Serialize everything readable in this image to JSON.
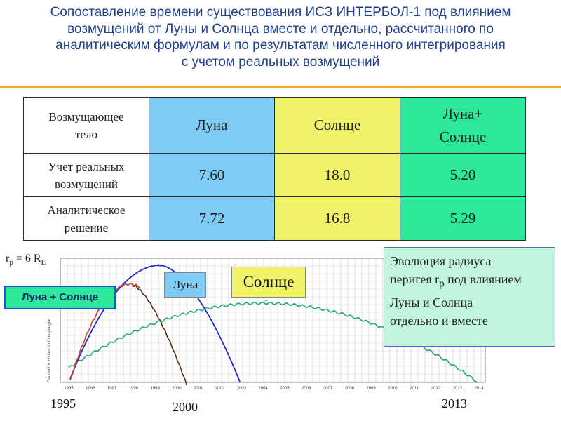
{
  "title_lines": [
    "Сопоставление времени существования ИСЗ ИНТЕРБОЛ-1 под влиянием",
    "возмущений от Луны и Солнца вместе и отдельно, рассчитанного по",
    "аналитическим формулам  и по  результатам численного интегрирования",
    "с учетом реальных возмущений"
  ],
  "table": {
    "header": {
      "row_label_lines": [
        "Возмущающее",
        "тело"
      ],
      "col1": "Луна",
      "col2": "Солнце",
      "col3_lines": [
        "Луна+",
        "Солнце"
      ]
    },
    "rows": [
      {
        "label_lines": [
          "Учет реальных",
          "возмущений"
        ],
        "values": [
          "7.60",
          "18.0",
          "5.20"
        ]
      },
      {
        "label_lines": [
          "Аналитическое",
          "решение"
        ],
        "values": [
          "7.72",
          "16.8",
          "5.29"
        ]
      }
    ]
  },
  "plot": {
    "rp_label": {
      "prefix": "r",
      "sub": "p",
      "mid": " = 6 R",
      "sub2": "E"
    },
    "x_tick_labels": [
      "1995",
      "1996",
      "1997",
      "1998",
      "1999",
      "2000",
      "2001",
      "2002",
      "2003",
      "2004",
      "2005",
      "2006",
      "2007",
      "2008",
      "2009",
      "2010",
      "2011",
      "2012",
      "2013",
      "2014"
    ],
    "y_axis_label": "Geocentric distance of the perigee",
    "labels": {
      "combo": "Луна + Солнце",
      "moon": "Луна",
      "sun": "Солнце"
    },
    "curve_colors": {
      "moon": "#1a2ccc",
      "sun": "#1fa877",
      "combo_a": "#d43a2a",
      "combo_b": "#5a2d1c"
    },
    "curve_markers": {
      "moon": "M",
      "sun": "S"
    }
  },
  "note_lines": [
    "Эволюция радиуса",
    {
      "pre": "перигея r",
      "sub": "p",
      "post": " под влиянием"
    },
    "Луны и Солнца",
    "отдельно и вместе"
  ],
  "years": {
    "left": "1995",
    "middle": "2000",
    "right": "2013"
  }
}
